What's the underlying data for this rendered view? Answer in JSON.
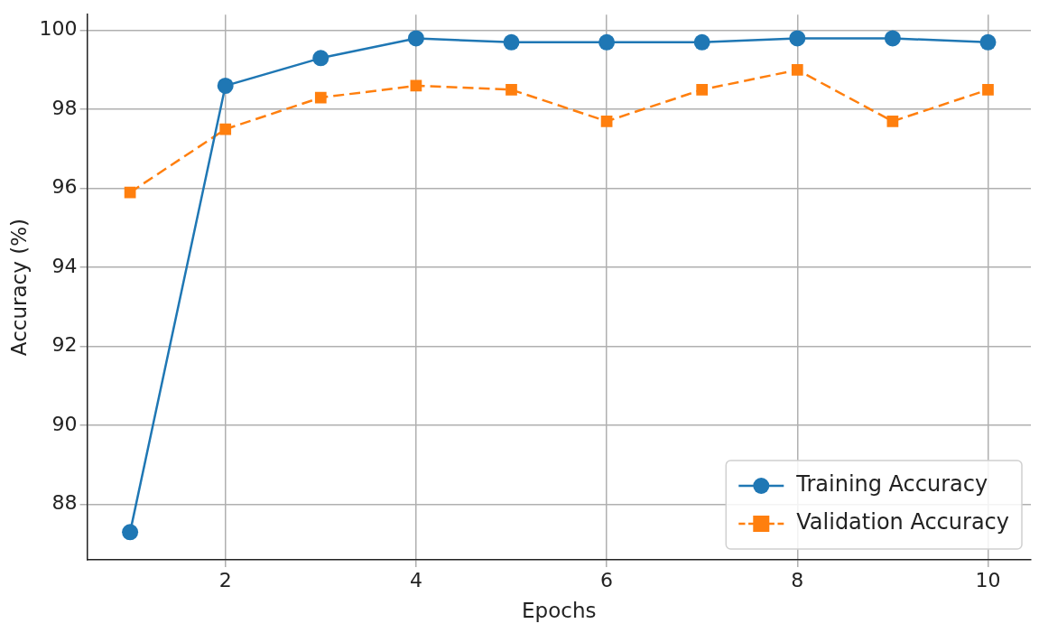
{
  "chart_data": {
    "type": "line",
    "xlabel": "Epochs",
    "ylabel": "Accuracy (%)",
    "x": [
      1,
      2,
      3,
      4,
      5,
      6,
      7,
      8,
      9,
      10
    ],
    "series": [
      {
        "name": "Training Accuracy",
        "color": "#1f77b4",
        "marker": "circle",
        "line_style": "solid",
        "values": [
          87.3,
          98.6,
          99.3,
          99.8,
          99.7,
          99.7,
          99.7,
          99.8,
          99.8,
          99.7
        ]
      },
      {
        "name": "Validation Accuracy",
        "color": "#ff7f0e",
        "marker": "square",
        "line_style": "dashed",
        "values": [
          95.9,
          97.5,
          98.3,
          98.6,
          98.5,
          97.7,
          98.5,
          99.0,
          97.7,
          98.5
        ]
      }
    ],
    "xlim": [
      0.55,
      10.45
    ],
    "xticks": [
      2,
      4,
      6,
      8,
      10
    ],
    "ylim": [
      86.6,
      100.4
    ],
    "yticks": [
      88,
      90,
      92,
      94,
      96,
      98,
      100
    ],
    "grid": true,
    "legend": "bottom right"
  }
}
